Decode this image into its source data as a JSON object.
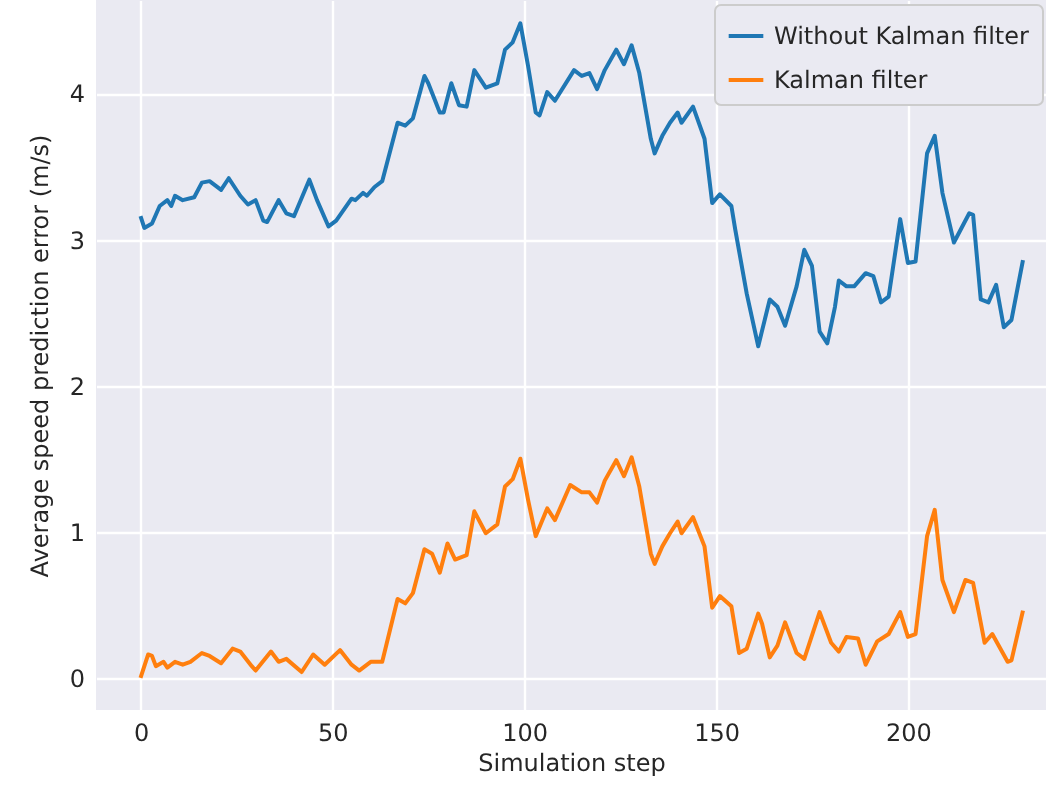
{
  "chart_data": {
    "type": "line",
    "xlabel": "Simulation step",
    "ylabel": "Average speed prediction error (m/s)",
    "xlim": [
      -11.6,
      236
    ],
    "ylim": [
      -0.22,
      4.64
    ],
    "xticks": [
      0,
      50,
      100,
      150,
      200
    ],
    "yticks": [
      0,
      1,
      2,
      3,
      4
    ],
    "grid": true,
    "legend": "top right",
    "series": [
      {
        "name": "Without Kalman filter",
        "color": "#1f77b4",
        "x": [
          0,
          1,
          3,
          5,
          7,
          8,
          9,
          11,
          14,
          16,
          18,
          21,
          23,
          26,
          28,
          30,
          32,
          33,
          36,
          38,
          40,
          44,
          46,
          49,
          51,
          55,
          56,
          58,
          59,
          61,
          63,
          67,
          69,
          71,
          74,
          75,
          78,
          79,
          81,
          83,
          85,
          87,
          90,
          93,
          95,
          97,
          99,
          101,
          103,
          104,
          106,
          108,
          113,
          115,
          117,
          119,
          121,
          124,
          126,
          128,
          130,
          133,
          134,
          136,
          138,
          140,
          141,
          144,
          147,
          149,
          151,
          154,
          155,
          158,
          161,
          164,
          166,
          168,
          171,
          173,
          175,
          177,
          179,
          181,
          182,
          184,
          186,
          189,
          191,
          193,
          195,
          198,
          200,
          202,
          205,
          207,
          209,
          212,
          216,
          217,
          219,
          221,
          223,
          225,
          227,
          230
        ],
        "values": [
          3.16,
          3.08,
          3.11,
          3.23,
          3.27,
          3.23,
          3.3,
          3.27,
          3.29,
          3.39,
          3.4,
          3.34,
          3.42,
          3.3,
          3.24,
          3.27,
          3.13,
          3.12,
          3.27,
          3.18,
          3.16,
          3.41,
          3.27,
          3.09,
          3.13,
          3.28,
          3.27,
          3.32,
          3.3,
          3.36,
          3.4,
          3.8,
          3.78,
          3.83,
          4.12,
          4.07,
          3.87,
          3.87,
          4.07,
          3.92,
          3.91,
          4.16,
          4.04,
          4.07,
          4.3,
          4.35,
          4.48,
          4.19,
          3.87,
          3.85,
          4.01,
          3.95,
          4.16,
          4.12,
          4.14,
          4.03,
          4.16,
          4.3,
          4.2,
          4.33,
          4.14,
          3.69,
          3.59,
          3.71,
          3.8,
          3.87,
          3.8,
          3.91,
          3.69,
          3.25,
          3.31,
          3.23,
          3.07,
          2.63,
          2.27,
          2.59,
          2.54,
          2.41,
          2.68,
          2.93,
          2.82,
          2.37,
          2.29,
          2.54,
          2.72,
          2.68,
          2.68,
          2.77,
          2.75,
          2.57,
          2.61,
          3.14,
          2.84,
          2.85,
          3.59,
          3.71,
          3.32,
          2.98,
          3.18,
          3.17,
          2.59,
          2.57,
          2.69,
          2.4,
          2.45,
          2.86
        ]
      },
      {
        "name": "Kalman filter",
        "color": "#ff7f0e",
        "x": [
          0,
          2,
          3,
          4,
          6,
          7,
          9,
          11,
          13,
          16,
          18,
          21,
          24,
          26,
          29,
          30,
          34,
          36,
          38,
          42,
          45,
          48,
          52,
          55,
          57,
          60,
          63,
          67,
          69,
          71,
          74,
          76,
          78,
          80,
          82,
          85,
          87,
          90,
          93,
          95,
          97,
          99,
          101,
          103,
          106,
          108,
          112,
          115,
          117,
          119,
          121,
          124,
          126,
          128,
          130,
          133,
          134,
          136,
          138,
          140,
          141,
          144,
          147,
          149,
          151,
          154,
          156,
          158,
          161,
          162,
          164,
          166,
          168,
          171,
          173,
          177,
          180,
          182,
          184,
          187,
          189,
          192,
          195,
          198,
          200,
          202,
          205,
          207,
          209,
          212,
          215,
          217,
          220,
          222,
          226,
          227,
          230
        ],
        "values": [
          0.0,
          0.16,
          0.15,
          0.08,
          0.11,
          0.07,
          0.11,
          0.09,
          0.11,
          0.17,
          0.15,
          0.1,
          0.2,
          0.18,
          0.08,
          0.05,
          0.18,
          0.11,
          0.13,
          0.04,
          0.16,
          0.09,
          0.19,
          0.09,
          0.05,
          0.11,
          0.11,
          0.54,
          0.51,
          0.58,
          0.88,
          0.85,
          0.72,
          0.92,
          0.81,
          0.84,
          1.14,
          0.99,
          1.05,
          1.31,
          1.36,
          1.5,
          1.22,
          0.97,
          1.16,
          1.08,
          1.32,
          1.27,
          1.27,
          1.2,
          1.35,
          1.49,
          1.38,
          1.51,
          1.31,
          0.85,
          0.78,
          0.9,
          0.99,
          1.07,
          0.99,
          1.1,
          0.9,
          0.48,
          0.56,
          0.49,
          0.17,
          0.2,
          0.44,
          0.37,
          0.14,
          0.22,
          0.38,
          0.17,
          0.13,
          0.45,
          0.24,
          0.18,
          0.28,
          0.27,
          0.09,
          0.25,
          0.3,
          0.45,
          0.28,
          0.3,
          0.97,
          1.15,
          0.67,
          0.45,
          0.67,
          0.65,
          0.24,
          0.3,
          0.11,
          0.12,
          0.46
        ]
      }
    ]
  }
}
